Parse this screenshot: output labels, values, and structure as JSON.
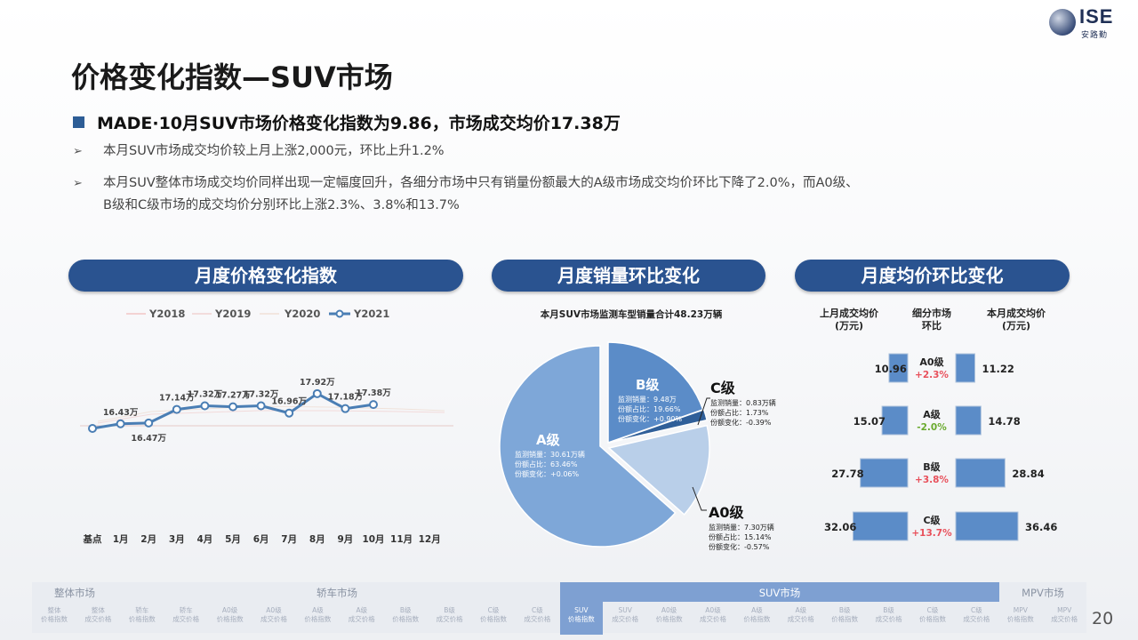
{
  "logo": {
    "brand": "ISE",
    "cn": "安路勤"
  },
  "title": "价格变化指数—SUV市场",
  "headline": "MADE·10月SUV市场价格变化指数为9.86，市场成交均价17.38万",
  "bullets": [
    "本月SUV市场成交均价较上月上涨2,000元，环比上升1.2%",
    "本月SUV整体市场成交均价同样出现一定幅度回升，各细分市场中只有销量份额最大的A级市场成交均价环比下降了2.0%，而A0级、",
    "B级和C级市场的成交均价分别环比上涨2.3%、3.8%和13.7%"
  ],
  "panels": {
    "index": "月度价格变化指数",
    "sales": "月度销量环比变化",
    "price": "月度均价环比变化"
  },
  "line_chart": {
    "legend": [
      "Y2018",
      "Y2019",
      "Y2020",
      "Y2021"
    ],
    "categories": [
      "基点",
      "1月",
      "2月",
      "3月",
      "4月",
      "5月",
      "6月",
      "7月",
      "8月",
      "9月",
      "10月",
      "11月",
      "12月"
    ],
    "labels": [
      "16.43万",
      "16.47万",
      "17.14万",
      "17.32万",
      "17.27万",
      "17.32万",
      "16.96万",
      "17.92万",
      "17.18万",
      "17.38万"
    ]
  },
  "pie": {
    "title": "本月SUV市场监测车型销量合计48.23万辆",
    "segments": [
      {
        "name": "A级",
        "lines": [
          "监测销量：30.61万辆",
          "份额占比：63.46%",
          "份额变化：+0.06%"
        ],
        "color": "#7ea7d8"
      },
      {
        "name": "B级",
        "lines": [
          "监测销量：9.48万",
          "份额占比：19.66%",
          "份额变化：+0.90%"
        ],
        "color": "#5b8cc8"
      },
      {
        "name": "C级",
        "lines": [
          "监测销量：0.83万辆",
          "份额占比：1.73%",
          "份额变化：-0.39%"
        ],
        "color": "#2f5f99"
      },
      {
        "name": "A0级",
        "lines": [
          "监测销量：7.30万辆",
          "份额占比：15.14%",
          "份额变化：-0.57%"
        ],
        "color": "#b9cfe9"
      }
    ]
  },
  "price_compare": {
    "headers": [
      "上月成交均价\n(万元)",
      "细分市场\n环比",
      "本月成交均价\n(万元)"
    ],
    "rows": [
      {
        "segment": "A0级",
        "change": "+2.3%",
        "prev": "10.96",
        "curr": "11.22",
        "dir": "up"
      },
      {
        "segment": "A级",
        "change": "-2.0%",
        "prev": "15.07",
        "curr": "14.78",
        "dir": "down"
      },
      {
        "segment": "B级",
        "change": "+3.8%",
        "prev": "27.78",
        "curr": "28.84",
        "dir": "up"
      },
      {
        "segment": "C级",
        "change": "+13.7%",
        "prev": "32.06",
        "curr": "36.46",
        "dir": "up"
      }
    ]
  },
  "chart_data": [
    {
      "type": "line",
      "categories": [
        "基点",
        "1月",
        "2月",
        "3月",
        "4月",
        "5月",
        "6月",
        "7月",
        "8月",
        "9月",
        "10月",
        "11月",
        "12月"
      ],
      "series": [
        {
          "name": "Y2021",
          "values": [
            null,
            16.43,
            16.47,
            17.14,
            17.32,
            17.27,
            17.32,
            16.96,
            17.92,
            17.18,
            17.38,
            null,
            null
          ]
        }
      ],
      "legend": [
        "Y2018",
        "Y2019",
        "Y2020",
        "Y2021"
      ]
    },
    {
      "type": "pie",
      "title": "本月SUV市场监测车型销量合计48.23万辆",
      "labels": [
        "A级",
        "B级",
        "C级",
        "A0级"
      ],
      "values": [
        63.46,
        19.66,
        1.73,
        15.14
      ]
    },
    {
      "type": "bar",
      "categories": [
        "A0级",
        "A级",
        "B级",
        "C级"
      ],
      "series": [
        {
          "name": "上月成交均价(万元)",
          "values": [
            10.96,
            15.07,
            27.78,
            32.06
          ]
        },
        {
          "name": "本月成交均价(万元)",
          "values": [
            11.22,
            14.78,
            28.84,
            36.46
          ]
        }
      ]
    }
  ],
  "colors": {
    "accent": "#2a5390",
    "line": "#4a7eb4",
    "up": "#e8505b",
    "down": "#6aaa2e"
  },
  "nav": {
    "sections": [
      "整体市场",
      "轿车市场",
      "SUV市场",
      "MPV市场"
    ],
    "tabs": [
      [
        "整体",
        "价格指数"
      ],
      [
        "整体",
        "成交价格"
      ],
      [
        "轿车",
        "价格指数"
      ],
      [
        "轿车",
        "成交价格"
      ],
      [
        "A0级",
        "价格指数"
      ],
      [
        "A0级",
        "成交价格"
      ],
      [
        "A级",
        "价格指数"
      ],
      [
        "A级",
        "成交价格"
      ],
      [
        "B级",
        "价格指数"
      ],
      [
        "B级",
        "成交价格"
      ],
      [
        "C级",
        "价格指数"
      ],
      [
        "C级",
        "成交价格"
      ],
      [
        "SUV",
        "价格指数"
      ],
      [
        "SUV",
        "成交价格"
      ],
      [
        "A0级",
        "价格指数"
      ],
      [
        "A0级",
        "成交价格"
      ],
      [
        "A级",
        "价格指数"
      ],
      [
        "A级",
        "成交价格"
      ],
      [
        "B级",
        "价格指数"
      ],
      [
        "B级",
        "成交价格"
      ],
      [
        "C级",
        "价格指数"
      ],
      [
        "C级",
        "成交价格"
      ],
      [
        "MPV",
        "价格指数"
      ],
      [
        "MPV",
        "成交价格"
      ]
    ],
    "active_tab": 12
  },
  "page_number": "20"
}
